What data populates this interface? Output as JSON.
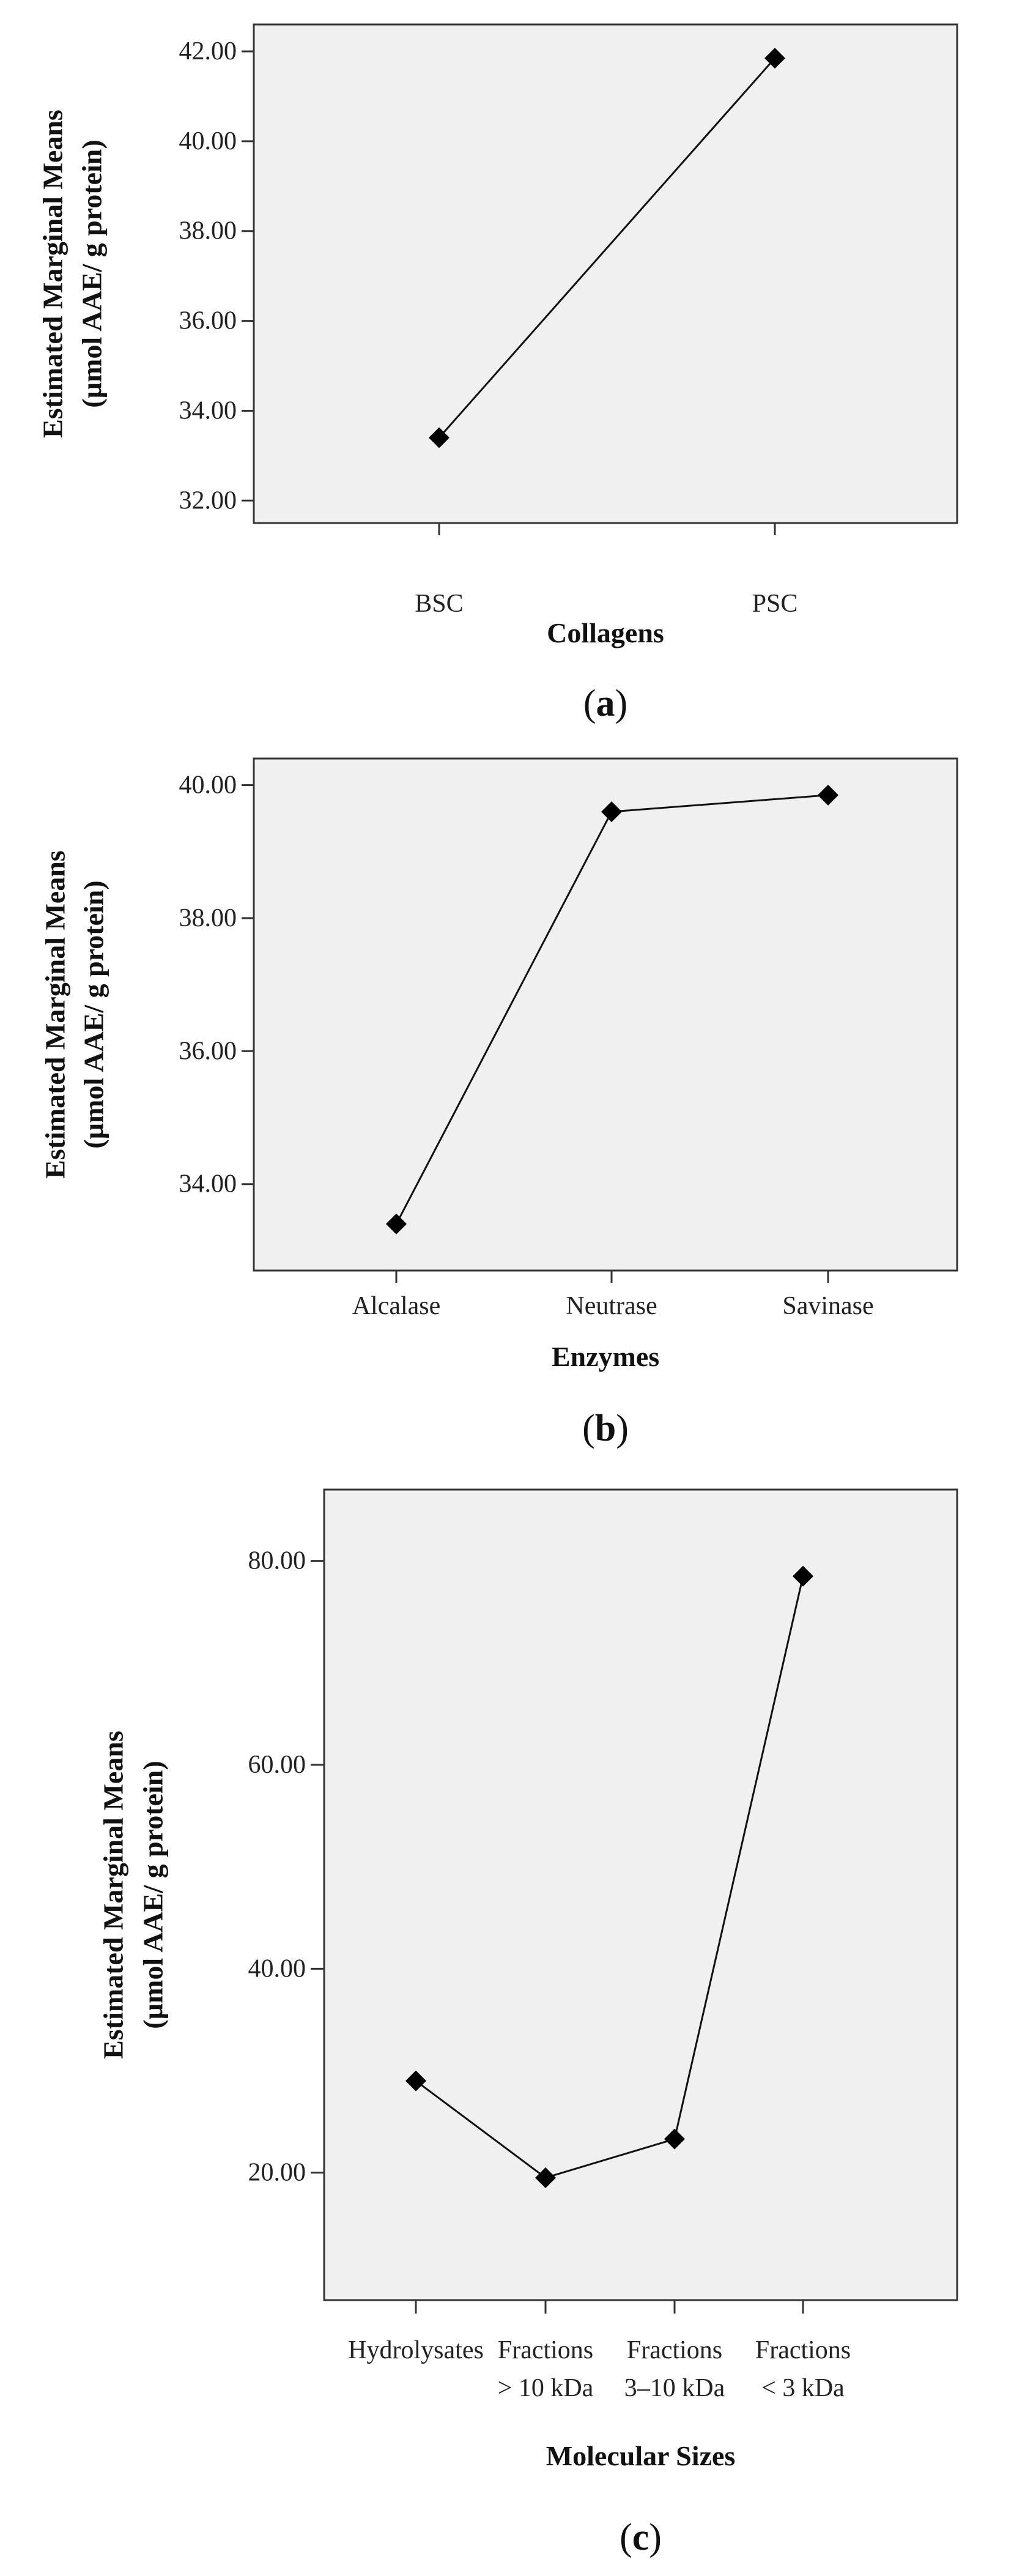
{
  "colors": {
    "plot_bg": "#f0f0f0",
    "frame": "#333333",
    "line": "#111111",
    "marker": "#000000"
  },
  "chart_data": [
    {
      "type": "line",
      "panel_label": "a",
      "title": "",
      "xlabel": "Collagens",
      "ylabel": [
        "Estimated Marginal Means",
        "(µmol AAE/ g protein)"
      ],
      "categories": [
        [
          "BSC"
        ],
        [
          "PSC"
        ]
      ],
      "values": [
        33.4,
        41.85
      ],
      "ylim": [
        31.5,
        42.6
      ],
      "yticks": [
        32,
        34,
        36,
        38,
        40,
        42
      ],
      "ytick_labels": [
        "32.00",
        "34.00",
        "36.00",
        "38.00",
        "40.00",
        "42.00"
      ],
      "grid": false,
      "marker": "diamond"
    },
    {
      "type": "line",
      "panel_label": "b",
      "title": "",
      "xlabel": "Enzymes",
      "ylabel": [
        "Estimated Marginal Means",
        "(µmol AAE/ g protein)"
      ],
      "categories": [
        [
          "Alcalase"
        ],
        [
          "Neutrase"
        ],
        [
          "Savinase"
        ]
      ],
      "values": [
        33.4,
        39.6,
        39.85
      ],
      "ylim": [
        32.7,
        40.4
      ],
      "yticks": [
        34,
        36,
        38,
        40
      ],
      "ytick_labels": [
        "34.00",
        "36.00",
        "38.00",
        "40.00"
      ],
      "grid": false,
      "marker": "diamond"
    },
    {
      "type": "line",
      "panel_label": "c",
      "title": "",
      "xlabel": "Molecular Sizes",
      "ylabel": [
        "Estimated Marginal Means",
        "(µmol AAE/ g protein)"
      ],
      "categories": [
        [
          "Hydrolysates"
        ],
        [
          "Fractions",
          "> 10 kDa"
        ],
        [
          "Fractions",
          "3–10 kDa"
        ],
        [
          "Fractions",
          "< 3 kDa"
        ]
      ],
      "values": [
        29.0,
        19.5,
        23.3,
        78.5
      ],
      "ylim": [
        7.5,
        87.0
      ],
      "yticks": [
        20,
        40,
        60,
        80
      ],
      "ytick_labels": [
        "20.00",
        "40.00",
        "60.00",
        "80.00"
      ],
      "grid": false,
      "marker": "diamond"
    }
  ]
}
